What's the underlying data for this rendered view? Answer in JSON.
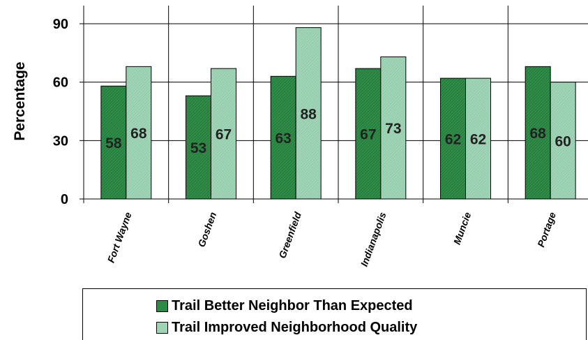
{
  "chart_data": {
    "type": "bar",
    "title": "",
    "xlabel": "",
    "ylabel": "Percentage",
    "ylim": [
      0,
      100
    ],
    "yticks": [
      0,
      30,
      60,
      90
    ],
    "grid": true,
    "legend_position": "bottom",
    "categories": [
      "Fort Wayne",
      "Goshen",
      "Greenfield",
      "Indianapolis",
      "Muncie",
      "Portage"
    ],
    "series": [
      {
        "name": "Trail Better Neighbor Than Expected",
        "color": "#2e8b46",
        "values": [
          58,
          53,
          63,
          67,
          62,
          68
        ]
      },
      {
        "name": "Trail Improved Neighborhood Quality",
        "color": "#9fd3b5",
        "values": [
          68,
          67,
          88,
          73,
          62,
          60
        ]
      }
    ]
  }
}
